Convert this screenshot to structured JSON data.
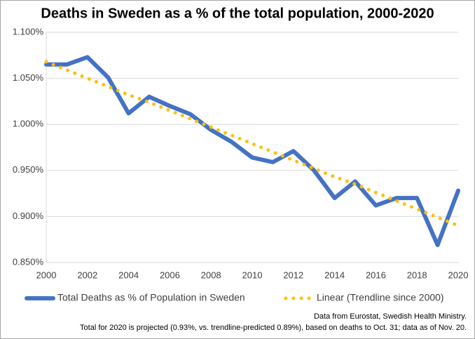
{
  "chart_data": {
    "type": "line",
    "title": "Deaths in Sweden as a % of the total population, 2000-2020",
    "x": [
      2000,
      2001,
      2002,
      2003,
      2004,
      2005,
      2006,
      2007,
      2008,
      2009,
      2010,
      2011,
      2012,
      2013,
      2014,
      2015,
      2016,
      2017,
      2018,
      2019,
      2020
    ],
    "series": [
      {
        "name": "Total Deaths as % of Population in Sweden",
        "color": "#4472c4",
        "style": "solid",
        "values": [
          1.065,
          1.065,
          1.073,
          1.051,
          1.012,
          1.03,
          1.02,
          1.011,
          0.994,
          0.981,
          0.964,
          0.959,
          0.971,
          0.95,
          0.92,
          0.938,
          0.912,
          0.92,
          0.92,
          0.869,
          0.928
        ]
      },
      {
        "name": "Linear (Trendline since 2000)",
        "color": "#ffc000",
        "style": "dotted",
        "values": [
          1.068,
          1.059,
          1.05,
          1.041,
          1.032,
          1.024,
          1.015,
          1.006,
          0.997,
          0.988,
          0.979,
          0.97,
          0.961,
          0.952,
          0.943,
          0.935,
          0.926,
          0.917,
          0.908,
          0.899,
          0.89
        ]
      }
    ],
    "xlim": [
      2000,
      2020
    ],
    "xticks": [
      2000,
      2002,
      2004,
      2006,
      2008,
      2010,
      2012,
      2014,
      2016,
      2018,
      2020
    ],
    "ylim": [
      0.85,
      1.1
    ],
    "yticks": [
      {
        "value": 0.85,
        "label": "0.850%"
      },
      {
        "value": 0.9,
        "label": "0.900%"
      },
      {
        "value": 0.95,
        "label": "0.950%"
      },
      {
        "value": 1.0,
        "label": "1.000%"
      },
      {
        "value": 1.05,
        "label": "1.050%"
      },
      {
        "value": 1.1,
        "label": "1.100%"
      }
    ],
    "grid": true,
    "legend": "bottom",
    "notes": [
      "Data from Eurostat, Swedish Health Ministry.",
      "Total for 2020 is projected (0.93%, vs. trendline-predicted 0.89%), based on deaths to Oct. 31; data as of Nov. 20."
    ]
  }
}
